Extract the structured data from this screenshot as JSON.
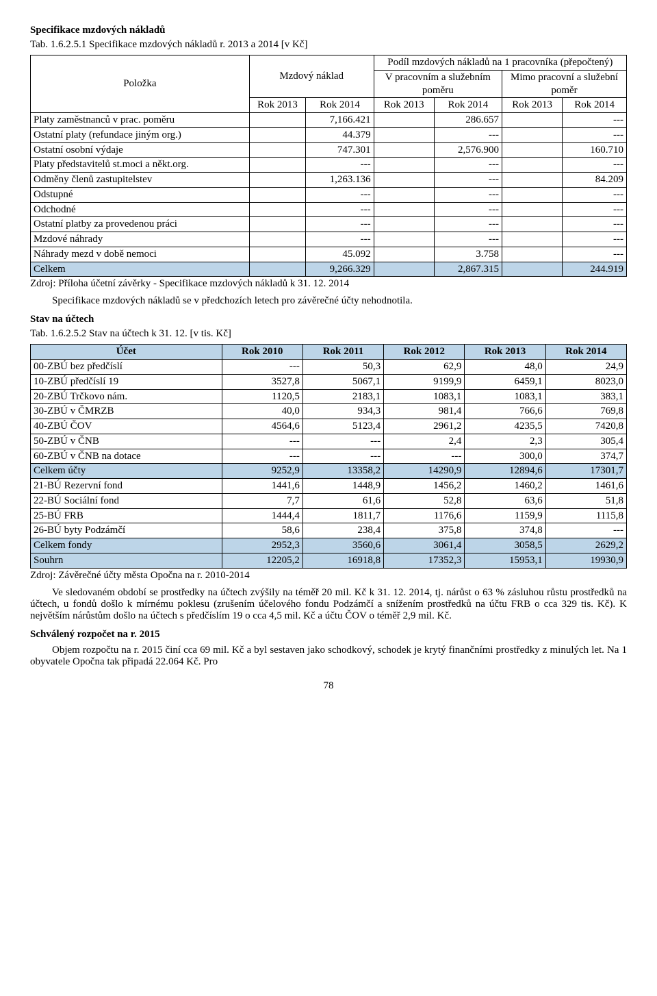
{
  "section1_title": "Specifikace mzdových nákladů",
  "tab1_caption": "Tab. 1.6.2.5.1 Specifikace mzdových nákladů r. 2013 a 2014 [v Kč]",
  "table1": {
    "col_polozka": "Položka",
    "col_mzdovy": "Mzdový náklad",
    "group_podil": "Podíl mzdových nákladů na 1 pracovníka (přepočtený)",
    "sub_vprac": "V pracovním a služebním poměru",
    "sub_mimo": "Mimo pracovní a služební poměr",
    "rok2013": "Rok 2013",
    "rok2014": "Rok 2014",
    "rows": [
      {
        "label": "Platy zaměstnanců v prac. poměru",
        "a": "",
        "b": "7,166.421",
        "c": "",
        "d": "286.657",
        "e": "",
        "f": "---"
      },
      {
        "label": "Ostatní platy (refundace jiným org.)",
        "a": "",
        "b": "44.379",
        "c": "",
        "d": "---",
        "e": "",
        "f": "---"
      },
      {
        "label": "Ostatní osobní výdaje",
        "a": "",
        "b": "747.301",
        "c": "",
        "d": "2,576.900",
        "e": "",
        "f": "160.710"
      },
      {
        "label": "Platy představitelů st.moci a někt.org.",
        "a": "",
        "b": "---",
        "c": "",
        "d": "---",
        "e": "",
        "f": "---"
      },
      {
        "label": "Odměny členů zastupitelstev",
        "a": "",
        "b": "1,263.136",
        "c": "",
        "d": "---",
        "e": "",
        "f": "84.209"
      },
      {
        "label": "Odstupné",
        "a": "",
        "b": "---",
        "c": "",
        "d": "---",
        "e": "",
        "f": "---"
      },
      {
        "label": "Odchodné",
        "a": "",
        "b": "---",
        "c": "",
        "d": "---",
        "e": "",
        "f": "---"
      },
      {
        "label": "Ostatní platby za provedenou práci",
        "a": "",
        "b": "---",
        "c": "",
        "d": "---",
        "e": "",
        "f": "---"
      },
      {
        "label": "Mzdové náhrady",
        "a": "",
        "b": "---",
        "c": "",
        "d": "---",
        "e": "",
        "f": "---"
      },
      {
        "label": "Náhrady mezd v době nemoci",
        "a": "",
        "b": "45.092",
        "c": "",
        "d": "3.758",
        "e": "",
        "f": "---"
      }
    ],
    "total": {
      "label": "Celkem",
      "a": "",
      "b": "9,266.329",
      "c": "",
      "d": "2,867.315",
      "e": "",
      "f": "244.919"
    },
    "highlight_color": "#bdd5e8"
  },
  "src1": "Zdroj: Příloha účetní  závěrky - Specifikace mzdových nákladů k 31. 12. 2014",
  "para1": "Specifikace mzdových nákladů se v předchozích letech pro závěrečné účty nehodnotila.",
  "section2_title": "Stav na účtech",
  "tab2_caption": "Tab. 1.6.2.5.2 Stav na účtech k 31. 12. [v tis. Kč]",
  "table2": {
    "headers": [
      "Účet",
      "Rok 2010",
      "Rok 2011",
      "Rok 2012",
      "Rok 2013",
      "Rok 2014"
    ],
    "rows": [
      {
        "label": "00-ZBÚ bez předčíslí",
        "v": [
          "---",
          "50,3",
          "62,9",
          "48,0",
          "24,9"
        ]
      },
      {
        "label": "10-ZBÚ předčíslí 19",
        "v": [
          "3527,8",
          "5067,1",
          "9199,9",
          "6459,1",
          "8023,0"
        ]
      },
      {
        "label": "20-ZBÚ Trčkovo nám.",
        "v": [
          "1120,5",
          "2183,1",
          "1083,1",
          "1083,1",
          "383,1"
        ]
      },
      {
        "label": "30-ZBÚ v ČMRZB",
        "v": [
          "40,0",
          "934,3",
          "981,4",
          "766,6",
          "769,8"
        ]
      },
      {
        "label": "40-ZBÚ ČOV",
        "v": [
          "4564,6",
          "5123,4",
          "2961,2",
          "4235,5",
          "7420,8"
        ]
      },
      {
        "label": "50-ZBÚ v ČNB",
        "v": [
          "---",
          "---",
          "2,4",
          "2,3",
          "305,4"
        ]
      },
      {
        "label": "60-ZBÚ v ČNB na dotace",
        "v": [
          "---",
          "---",
          "---",
          "300,0",
          "374,7"
        ]
      }
    ],
    "subtotal1": {
      "label": "Celkem účty",
      "v": [
        "9252,9",
        "13358,2",
        "14290,9",
        "12894,6",
        "17301,7"
      ]
    },
    "rows2": [
      {
        "label": "21-BÚ Rezervní fond",
        "v": [
          "1441,6",
          "1448,9",
          "1456,2",
          "1460,2",
          "1461,6"
        ]
      },
      {
        "label": "22-BÚ Sociální fond",
        "v": [
          "7,7",
          "61,6",
          "52,8",
          "63,6",
          "51,8"
        ]
      },
      {
        "label": "25-BÚ FRB",
        "v": [
          "1444,4",
          "1811,7",
          "1176,6",
          "1159,9",
          "1115,8"
        ]
      },
      {
        "label": "26-BÚ byty Podzámčí",
        "v": [
          "58,6",
          "238,4",
          "375,8",
          "374,8",
          "---"
        ]
      }
    ],
    "subtotal2": {
      "label": "Celkem fondy",
      "v": [
        "2952,3",
        "3560,6",
        "3061,4",
        "3058,5",
        "2629,2"
      ]
    },
    "grand": {
      "label": "Souhrn",
      "v": [
        "12205,2",
        "16918,8",
        "17352,3",
        "15953,1",
        "19930,9"
      ]
    }
  },
  "src2": "Zdroj: Závěrečné účty města Opočna na r. 2010-2014",
  "para2": "Ve sledovaném období se prostředky na účtech zvýšily na téměř 20 mil. Kč k 31. 12. 2014, tj. nárůst o 63 % zásluhou růstu prostředků na účtech, u fondů došlo k mírnému poklesu (zrušením účelového fondu  Podzámčí a snížením prostředků na účtu FRB o cca 329 tis. Kč). K největším nárůstům došlo na účtech s předčíslím 19 o cca 4,5 mil. Kč a účtu ČOV o téměř 2,9 mil. Kč.",
  "section3_title": "Schválený rozpočet na r. 2015",
  "para3": "Objem rozpočtu na r. 2015 činí cca 69 mil. Kč a byl sestaven jako schodkový, schodek je krytý finančními prostředky z minulých let. Na 1 obyvatele Opočna tak připadá 22.064 Kč. Pro",
  "pagenum": "78"
}
